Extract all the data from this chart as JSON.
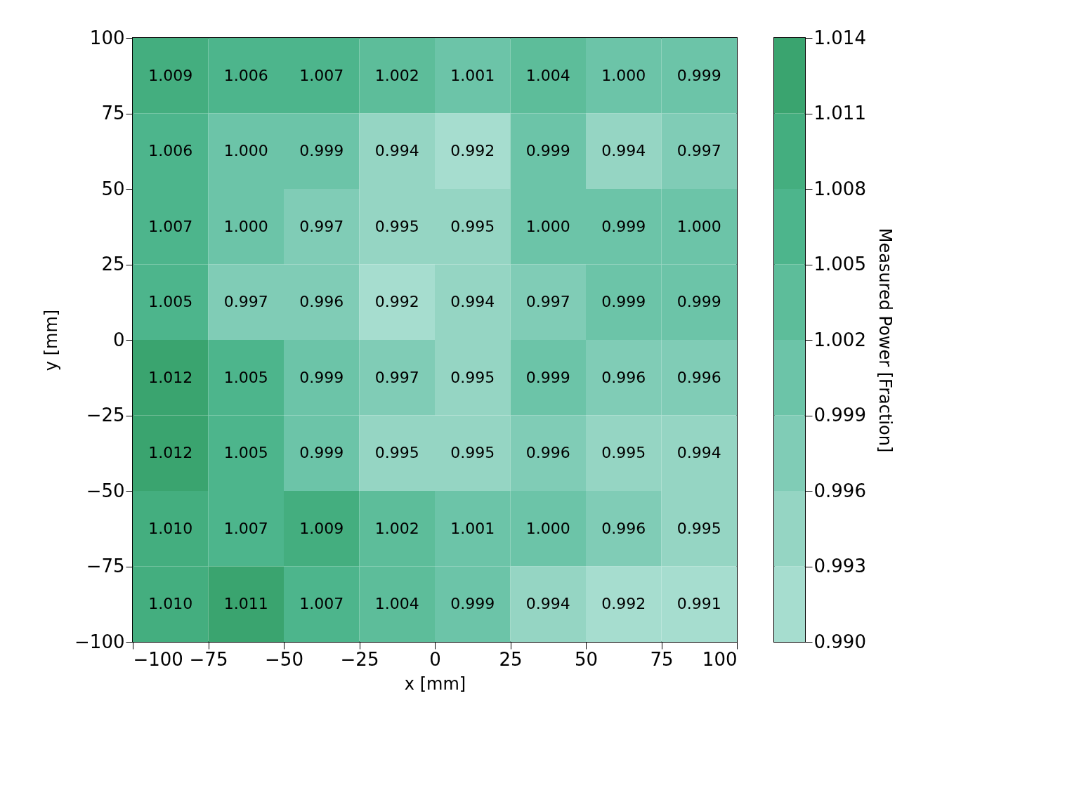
{
  "chart_data": {
    "type": "heatmap",
    "x": [
      -87.5,
      -62.5,
      -37.5,
      -12.5,
      12.5,
      37.5,
      62.5,
      87.5
    ],
    "y": [
      87.5,
      62.5,
      37.5,
      12.5,
      -12.5,
      -37.5,
      -62.5,
      -87.5
    ],
    "cells": [
      [
        1.009,
        1.006,
        1.007,
        1.002,
        1.001,
        1.004,
        1.0,
        0.999
      ],
      [
        1.006,
        1.0,
        0.999,
        0.994,
        0.992,
        0.999,
        0.994,
        0.997
      ],
      [
        1.007,
        1.0,
        0.997,
        0.995,
        0.995,
        1.0,
        0.999,
        1.0
      ],
      [
        1.005,
        0.997,
        0.996,
        0.992,
        0.994,
        0.997,
        0.999,
        0.999
      ],
      [
        1.012,
        1.005,
        0.999,
        0.997,
        0.995,
        0.999,
        0.996,
        0.996
      ],
      [
        1.012,
        1.005,
        0.999,
        0.995,
        0.995,
        0.996,
        0.995,
        0.994
      ],
      [
        1.01,
        1.007,
        1.009,
        1.002,
        1.001,
        1.0,
        0.996,
        0.995
      ],
      [
        1.01,
        1.011,
        1.007,
        1.004,
        0.999,
        0.994,
        0.992,
        0.991
      ]
    ],
    "cell_labels": [
      [
        "1.009",
        "1.006",
        "1.007",
        "1.002",
        "1.001",
        "1.004",
        "1.000",
        "0.999"
      ],
      [
        "1.006",
        "1.000",
        "0.999",
        "0.994",
        "0.992",
        "0.999",
        "0.994",
        "0.997"
      ],
      [
        "1.007",
        "1.000",
        "0.997",
        "0.995",
        "0.995",
        "1.000",
        "0.999",
        "1.000"
      ],
      [
        "1.005",
        "0.997",
        "0.996",
        "0.992",
        "0.994",
        "0.997",
        "0.999",
        "0.999"
      ],
      [
        "1.012",
        "1.005",
        "0.999",
        "0.997",
        "0.995",
        "0.999",
        "0.996",
        "0.996"
      ],
      [
        "1.012",
        "1.005",
        "0.999",
        "0.995",
        "0.995",
        "0.996",
        "0.995",
        "0.994"
      ],
      [
        "1.010",
        "1.007",
        "1.009",
        "1.002",
        "1.001",
        "1.000",
        "0.996",
        "0.995"
      ],
      [
        "1.010",
        "1.011",
        "1.007",
        "1.004",
        "0.999",
        "0.994",
        "0.992",
        "0.991"
      ]
    ],
    "xlabel": "x [mm]",
    "ylabel": "y [mm]",
    "clabel": "Measured Power [Fraction]",
    "xlim": [
      -100,
      100
    ],
    "ylim": [
      -100,
      100
    ],
    "xticks": [
      -100,
      -75,
      -50,
      -25,
      0,
      25,
      50,
      75,
      100
    ],
    "yticks": [
      -100,
      -75,
      -50,
      -25,
      0,
      25,
      50,
      75,
      100
    ],
    "clim": [
      0.99,
      1.014
    ],
    "data_labels": true,
    "cticks": [
      {
        "value": 0.99,
        "label": "0.990"
      },
      0.993,
      0.996,
      0.999,
      1.002,
      1.005,
      1.008,
      1.011,
      1.014
    ],
    "colors": [
      "#a6ddcf",
      "#95d5c3",
      "#80ccb6",
      "#6cc4a8",
      "#5dbd9a",
      "#4db58c",
      "#44ae7f",
      "#3aa46f"
    ],
    "grid": false
  }
}
